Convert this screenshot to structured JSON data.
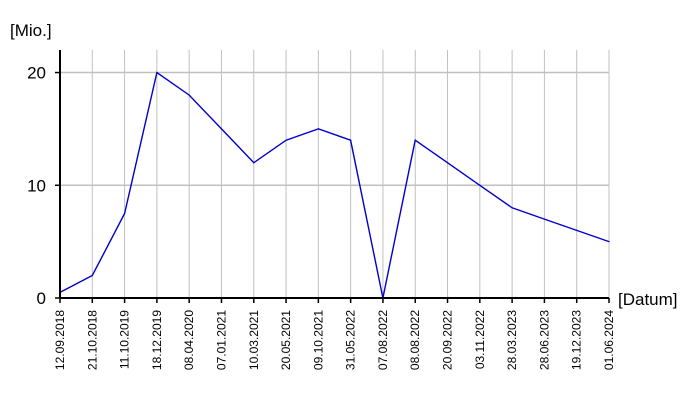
{
  "chart_data": {
    "type": "line",
    "ylabel": "[Mio.]",
    "xlabel": "[Datum]",
    "ylim": [
      0,
      22
    ],
    "yticks": [
      0,
      10,
      20
    ],
    "grid": true,
    "categories": [
      "12.09.2018",
      "21.10.2018",
      "11.10.2019",
      "18.12.2019",
      "08.04.2020",
      "07.01.2021",
      "10.03.2021",
      "20.05.2021",
      "09.10.2021",
      "31.05.2022",
      "07.08.2022",
      "08.08.2022",
      "20.09.2022",
      "03.11.2022",
      "28.03.2023",
      "28.06.2023",
      "19.12.2023",
      "01.06.2024"
    ],
    "series": [
      {
        "values": [
          0.5,
          2,
          7.5,
          20,
          18,
          15,
          12,
          14,
          15,
          14,
          0,
          14,
          12,
          10,
          8,
          7,
          6,
          5
        ]
      }
    ],
    "colors": {
      "line": "#0000cc",
      "grid": "#c0c0c0",
      "axis": "#000000"
    }
  }
}
